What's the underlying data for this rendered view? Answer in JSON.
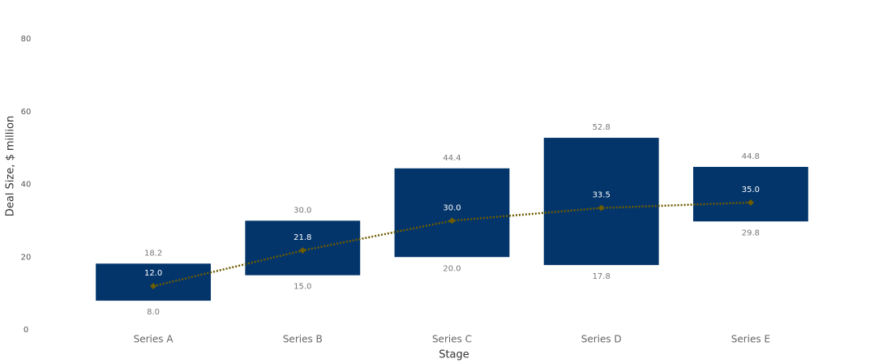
{
  "chart_data": {
    "type": "range_bar",
    "x_label": "Stage",
    "y_label": "Deal Size, $ million",
    "categories": [
      "Series A",
      "Series B",
      "Series C",
      "Series D",
      "Series E"
    ],
    "low": {
      "values": [
        8.0,
        15.0,
        20.0,
        17.8,
        29.8
      ],
      "value_labels": [
        "8.0",
        "15.0",
        "20.0",
        "17.8",
        "29.8"
      ]
    },
    "high": {
      "values": [
        18.2,
        30.0,
        44.4,
        52.8,
        44.8
      ],
      "value_labels": [
        "18.2",
        "30.0",
        "44.4",
        "52.8",
        "44.8"
      ]
    },
    "median": {
      "values": [
        12.0,
        21.8,
        30.0,
        33.5,
        35.0
      ],
      "value_labels": [
        "12.0",
        "21.8",
        "30.0",
        "33.5",
        "35.0"
      ],
      "color": "#6e5c00"
    },
    "color": "#03356b",
    "ylim": [
      0,
      80
    ],
    "yticks": [
      0,
      20,
      40,
      60,
      80
    ],
    "grid": false
  }
}
